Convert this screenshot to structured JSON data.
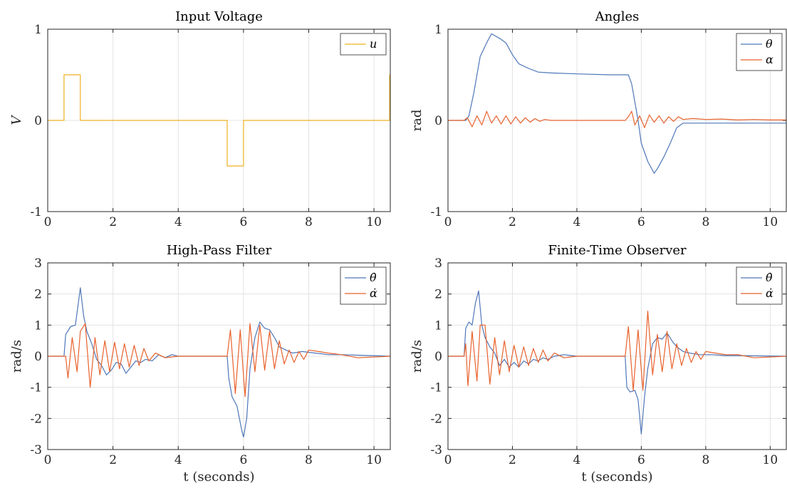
{
  "colors": {
    "blue": "#4f77b9",
    "orange": "#e8622d",
    "yellow": "#edb120"
  },
  "chart_data": [
    {
      "type": "line",
      "title": "Input Voltage",
      "xlabel": "",
      "ylabel": "V",
      "xlim": [
        0,
        10.5
      ],
      "ylim": [
        -1,
        1
      ],
      "xticks": [
        "0",
        "2",
        "4",
        "6",
        "8",
        "10"
      ],
      "yticks": [
        "-1",
        "0",
        "1"
      ],
      "grid": true,
      "legend_position": "top-right",
      "series": [
        {
          "name": "u",
          "color": "#edb120",
          "x": [
            0,
            0.5,
            0.5,
            1.0,
            1.0,
            5.5,
            5.5,
            6.0,
            6.0,
            10.48,
            10.48,
            10.5
          ],
          "y": [
            0,
            0,
            0.5,
            0.5,
            0,
            0,
            -0.5,
            -0.5,
            0,
            0,
            0.5,
            0.5
          ]
        }
      ]
    },
    {
      "type": "line",
      "title": "Angles",
      "xlabel": "",
      "ylabel": "rad",
      "xlim": [
        0,
        10.5
      ],
      "ylim": [
        -1,
        1
      ],
      "xticks": [
        "0",
        "2",
        "4",
        "6",
        "8",
        "10"
      ],
      "yticks": [
        "-1",
        "0",
        "1"
      ],
      "grid": true,
      "legend_position": "top-right",
      "series": [
        {
          "name": "θ",
          "color": "#4f77b9",
          "x": [
            0,
            0.55,
            0.65,
            0.8,
            1.0,
            1.2,
            1.35,
            1.45,
            1.6,
            1.8,
            2.0,
            2.2,
            2.5,
            2.8,
            3.2,
            4.0,
            5.0,
            5.6,
            5.7,
            5.8,
            5.9,
            6.0,
            6.2,
            6.4,
            6.5,
            6.7,
            6.9,
            7.1,
            7.3,
            8.0,
            9.0,
            10.5
          ],
          "y": [
            0,
            0,
            0.05,
            0.3,
            0.7,
            0.85,
            0.95,
            0.93,
            0.9,
            0.85,
            0.72,
            0.62,
            0.57,
            0.53,
            0.52,
            0.51,
            0.5,
            0.5,
            0.4,
            0.2,
            0.0,
            -0.25,
            -0.45,
            -0.58,
            -0.53,
            -0.4,
            -0.25,
            -0.08,
            -0.03,
            -0.03,
            -0.03,
            -0.03
          ]
        },
        {
          "name": "α",
          "color": "#e8622d",
          "x": [
            0,
            0.5,
            0.6,
            0.75,
            0.9,
            1.05,
            1.2,
            1.35,
            1.5,
            1.65,
            1.8,
            1.95,
            2.1,
            2.25,
            2.4,
            2.55,
            2.7,
            2.85,
            3.0,
            3.2,
            3.5,
            5.5,
            5.6,
            5.7,
            5.8,
            5.95,
            6.1,
            6.25,
            6.4,
            6.55,
            6.7,
            6.85,
            7.0,
            7.15,
            7.3,
            7.6,
            8.0,
            8.5,
            9.0,
            9.5,
            10.0,
            10.5
          ],
          "y": [
            0,
            0,
            0.03,
            -0.07,
            0.05,
            -0.05,
            0.1,
            -0.03,
            0.05,
            -0.04,
            0.05,
            -0.04,
            0.04,
            -0.03,
            0.03,
            -0.02,
            0.02,
            -0.01,
            0.01,
            0,
            0,
            0,
            0.04,
            0.1,
            -0.05,
            0.05,
            -0.08,
            0.06,
            -0.02,
            0.05,
            -0.03,
            0.04,
            -0.01,
            0.04,
            0.01,
            0.02,
            0.01,
            0.015,
            0.005,
            0.01,
            0.005,
            0.005
          ]
        }
      ]
    },
    {
      "type": "line",
      "title": "High-Pass Filter",
      "xlabel": "t (seconds)",
      "ylabel": "rad/s",
      "xlim": [
        0,
        10.5
      ],
      "ylim": [
        -3,
        3
      ],
      "xticks": [
        "0",
        "2",
        "4",
        "6",
        "8",
        "10"
      ],
      "yticks": [
        "-3",
        "-2",
        "-1",
        "0",
        "1",
        "2",
        "3"
      ],
      "grid": true,
      "legend_position": "top-right",
      "series": [
        {
          "name": "θ̇",
          "color": "#4f77b9",
          "x": [
            0,
            0.5,
            0.55,
            0.7,
            0.85,
            1.0,
            1.1,
            1.2,
            1.35,
            1.5,
            1.65,
            1.8,
            1.95,
            2.1,
            2.25,
            2.4,
            2.55,
            2.7,
            2.85,
            3.0,
            3.2,
            3.4,
            3.6,
            3.8,
            4.0,
            5.5,
            5.55,
            5.65,
            5.8,
            5.95,
            6.0,
            6.1,
            6.2,
            6.35,
            6.5,
            6.65,
            6.8,
            6.95,
            7.1,
            7.3,
            7.5,
            7.8,
            8.2,
            8.6,
            9.0,
            10.5
          ],
          "y": [
            0,
            0,
            0.7,
            0.95,
            1.0,
            2.2,
            1.3,
            0.8,
            0.4,
            -0.1,
            -0.3,
            -0.6,
            -0.45,
            -0.2,
            -0.25,
            -0.55,
            -0.35,
            -0.15,
            -0.2,
            -0.1,
            -0.15,
            0.05,
            -0.05,
            0.05,
            0,
            0,
            -0.7,
            -1.3,
            -1.6,
            -2.4,
            -2.6,
            -2.0,
            -0.4,
            0.6,
            1.1,
            0.9,
            0.85,
            0.6,
            0.3,
            0.2,
            0.1,
            0.15,
            0.1,
            0.05,
            0.05,
            0
          ]
        },
        {
          "name": "α̇",
          "color": "#e8622d",
          "x": [
            0,
            0.5,
            0.55,
            0.62,
            0.75,
            0.9,
            1.0,
            1.15,
            1.3,
            1.45,
            1.6,
            1.75,
            1.9,
            2.05,
            2.2,
            2.35,
            2.5,
            2.65,
            2.8,
            2.95,
            3.1,
            3.3,
            3.6,
            4.0,
            5.5,
            5.6,
            5.75,
            5.9,
            6.05,
            6.2,
            6.35,
            6.5,
            6.65,
            6.8,
            6.95,
            7.1,
            7.25,
            7.4,
            7.55,
            7.7,
            7.85,
            8.0,
            8.3,
            8.6,
            9.0,
            9.5,
            10.5
          ],
          "y": [
            0,
            0,
            0.0,
            -0.7,
            0.6,
            -0.5,
            0.8,
            1.05,
            -1.0,
            0.6,
            -0.6,
            0.5,
            -0.5,
            0.45,
            -0.4,
            0.4,
            -0.35,
            0.35,
            -0.3,
            0.25,
            -0.15,
            0.1,
            -0.05,
            0,
            0,
            0.85,
            -1.2,
            0.85,
            -1.3,
            1.05,
            -0.5,
            1.0,
            -0.45,
            0.8,
            -0.4,
            0.5,
            -0.25,
            0.2,
            -0.2,
            0.15,
            -0.1,
            0.2,
            0.15,
            0.1,
            0.05,
            -0.05,
            0
          ]
        }
      ]
    },
    {
      "type": "line",
      "title": "Finite-Time Observer",
      "xlabel": "t (seconds)",
      "ylabel": "rad/s",
      "xlim": [
        0,
        10.5
      ],
      "ylim": [
        -3,
        3
      ],
      "xticks": [
        "0",
        "2",
        "4",
        "6",
        "8",
        "10"
      ],
      "yticks": [
        "-3",
        "-2",
        "-1",
        "0",
        "1",
        "2",
        "3"
      ],
      "grid": true,
      "legend_position": "top-right",
      "series": [
        {
          "name": "θ̇",
          "color": "#4f77b9",
          "x": [
            0,
            0.5,
            0.55,
            0.65,
            0.75,
            0.85,
            0.95,
            1.05,
            1.15,
            1.3,
            1.45,
            1.6,
            1.75,
            1.9,
            2.05,
            2.2,
            2.35,
            2.5,
            2.65,
            2.8,
            2.95,
            3.1,
            3.3,
            3.6,
            4.0,
            5.5,
            5.55,
            5.65,
            5.8,
            5.9,
            6.0,
            6.1,
            6.2,
            6.35,
            6.5,
            6.65,
            6.8,
            6.95,
            7.1,
            7.3,
            7.5,
            7.8,
            8.2,
            8.6,
            9.0,
            10.5
          ],
          "y": [
            0,
            0,
            0.9,
            1.1,
            1.0,
            1.7,
            2.1,
            1.0,
            0.6,
            0.3,
            0.1,
            -0.3,
            -0.1,
            -0.35,
            -0.2,
            -0.35,
            -0.15,
            -0.25,
            -0.1,
            -0.15,
            -0.05,
            -0.1,
            0,
            0.05,
            0,
            0,
            -1.0,
            -1.15,
            -1.1,
            -1.4,
            -2.5,
            -1.3,
            -0.4,
            0.4,
            0.6,
            0.55,
            0.75,
            0.5,
            0.3,
            0.15,
            0.1,
            0.05,
            0.05,
            0.02,
            0.02,
            0
          ]
        },
        {
          "name": "α̇",
          "color": "#e8622d",
          "x": [
            0,
            0.5,
            0.55,
            0.62,
            0.75,
            0.9,
            1.0,
            1.15,
            1.3,
            1.45,
            1.6,
            1.75,
            1.9,
            2.05,
            2.2,
            2.35,
            2.5,
            2.65,
            2.8,
            2.95,
            3.1,
            3.3,
            3.6,
            4.0,
            5.5,
            5.6,
            5.75,
            5.9,
            6.05,
            6.2,
            6.35,
            6.5,
            6.65,
            6.8,
            6.95,
            7.1,
            7.25,
            7.4,
            7.55,
            7.7,
            7.85,
            8.0,
            8.3,
            8.6,
            9.0,
            9.5,
            10.5
          ],
          "y": [
            0,
            0,
            0.4,
            -0.95,
            0.8,
            -0.8,
            1.0,
            1.0,
            -0.9,
            0.6,
            -0.6,
            0.5,
            -0.5,
            0.35,
            -0.35,
            0.3,
            -0.3,
            0.25,
            -0.2,
            0.2,
            -0.15,
            0.1,
            -0.05,
            0,
            0,
            0.95,
            -1.1,
            0.85,
            -1.1,
            1.45,
            -0.6,
            0.7,
            -0.5,
            0.8,
            -0.4,
            0.4,
            -0.3,
            0.25,
            -0.2,
            0.15,
            -0.1,
            0.15,
            0.1,
            0.05,
            0.05,
            -0.05,
            0
          ]
        }
      ]
    }
  ]
}
